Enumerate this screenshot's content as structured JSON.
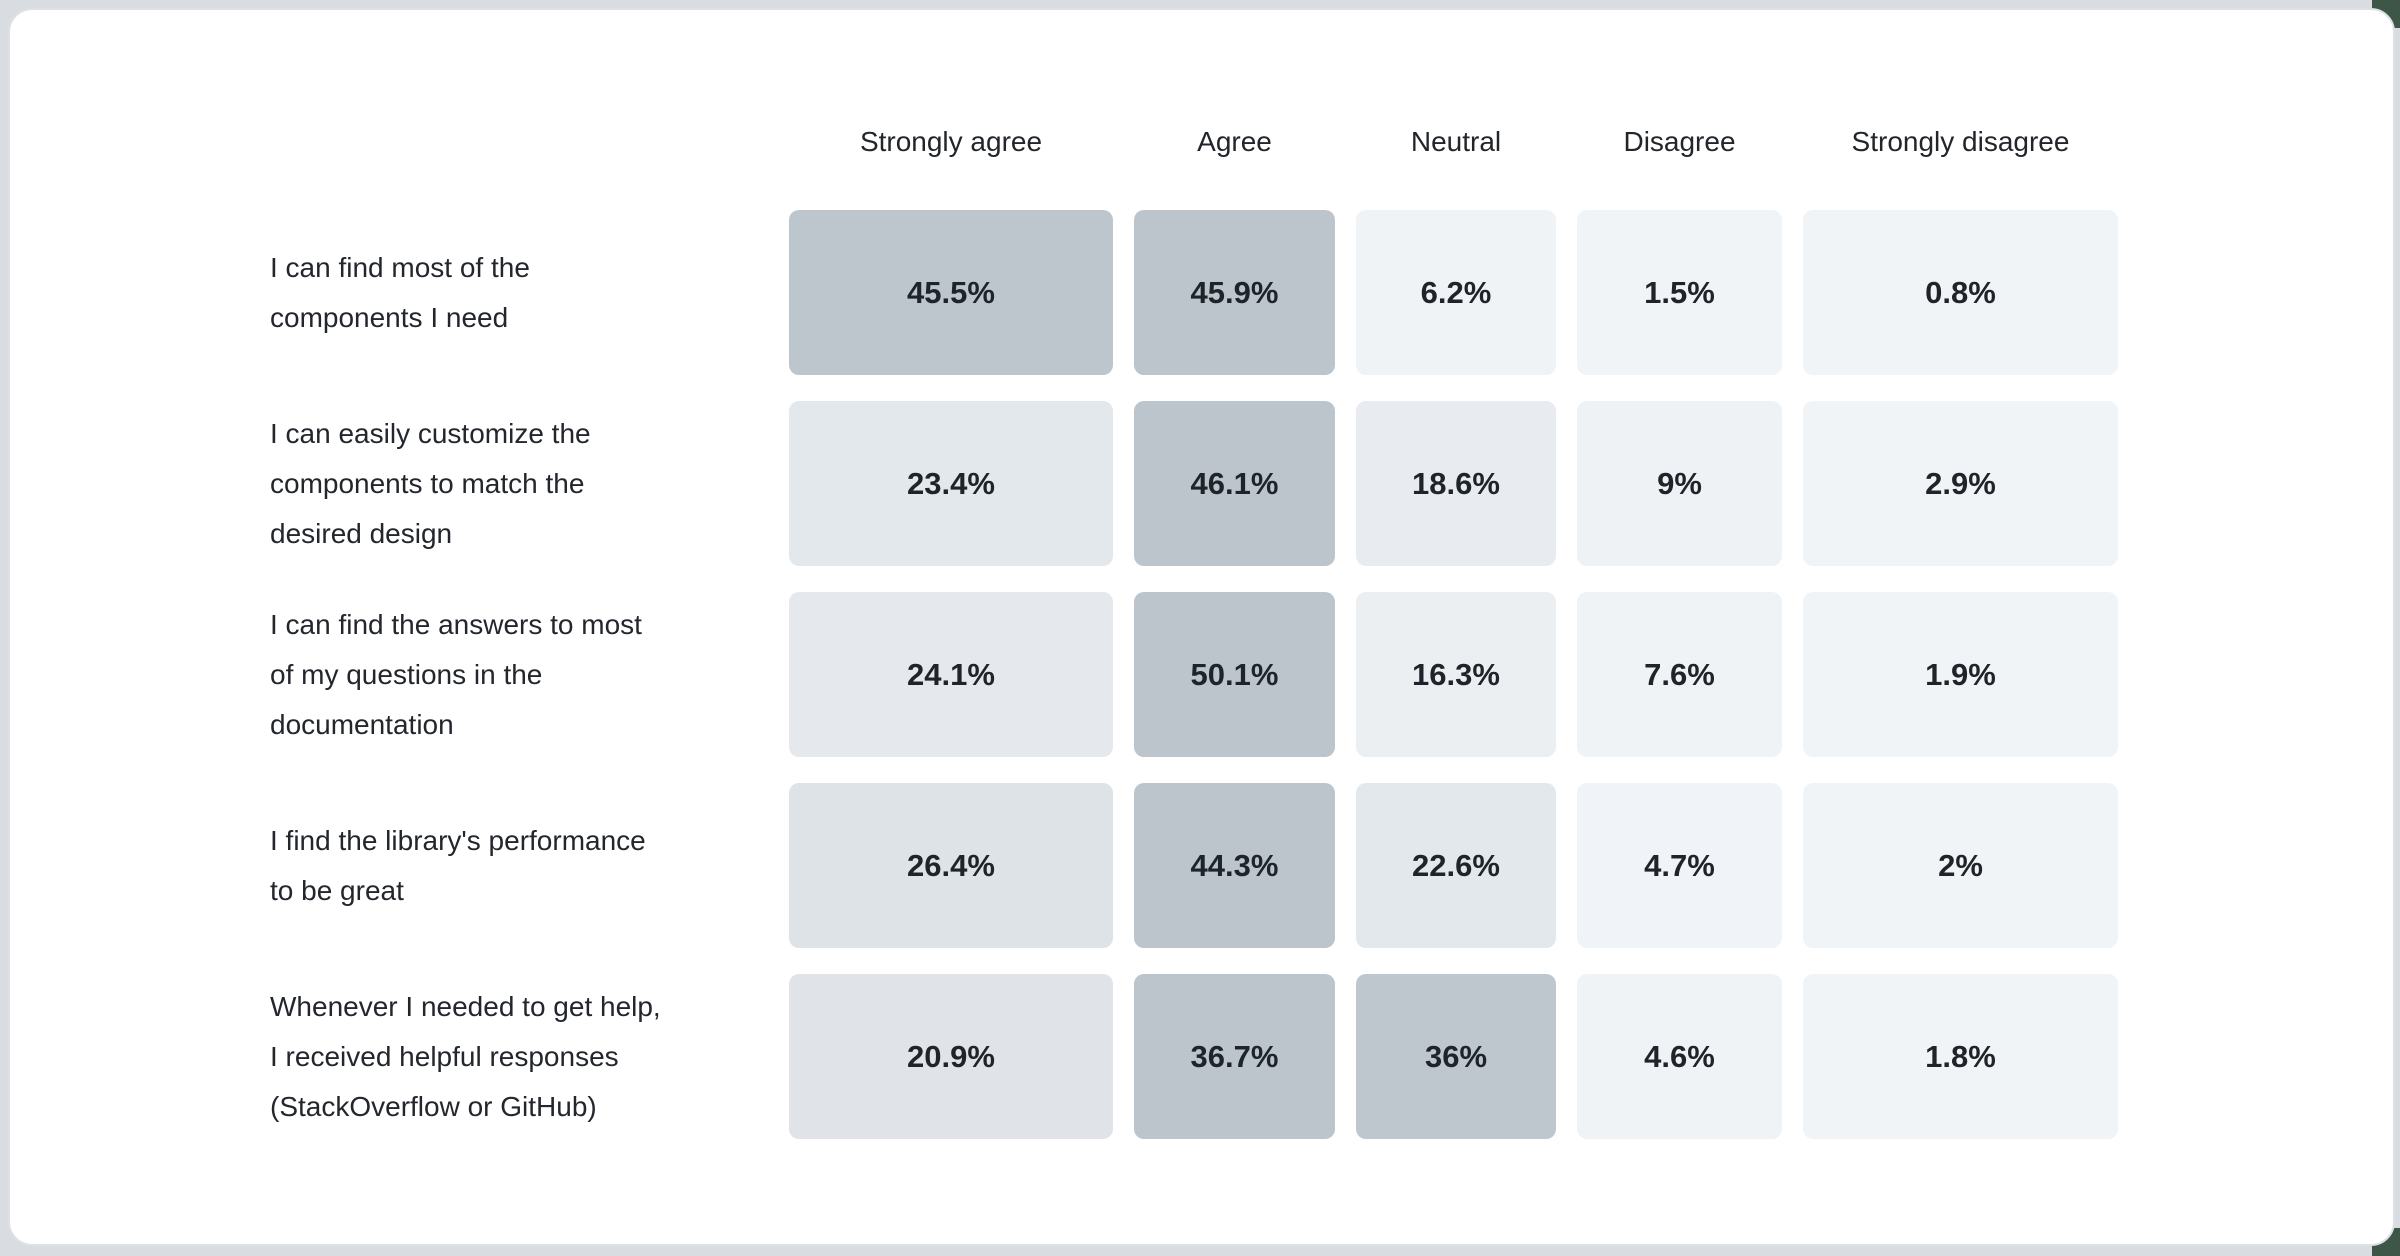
{
  "page": {
    "background": "#d9dce0",
    "corner_accent_color": "#3d5647",
    "card_background": "#ffffff",
    "card_border": "#dde1e5"
  },
  "chart_data": {
    "type": "heatmap",
    "title": "",
    "legend": "none",
    "grid": "off",
    "columns": [
      "Strongly agree",
      "Agree",
      "Neutral",
      "Disagree",
      "Strongly disagree"
    ],
    "rows": [
      {
        "question": "I can find most of the\ncomponents I need",
        "values": [
          45.5,
          45.9,
          6.2,
          1.5,
          0.8
        ],
        "labels": [
          "45.5%",
          "45.9%",
          "6.2%",
          "1.5%",
          "0.8%"
        ]
      },
      {
        "question": "I can easily customize the\ncomponents to match the\ndesired design",
        "values": [
          23.4,
          46.1,
          18.6,
          9,
          2.9
        ],
        "labels": [
          "23.4%",
          "46.1%",
          "18.6%",
          "9%",
          "2.9%"
        ]
      },
      {
        "question": "I can find the answers to most\nof my questions in the\ndocumentation",
        "values": [
          24.1,
          50.1,
          16.3,
          7.6,
          1.9
        ],
        "labels": [
          "24.1%",
          "50.1%",
          "16.3%",
          "7.6%",
          "1.9%"
        ]
      },
      {
        "question": "I find the library's performance\nto be great",
        "values": [
          26.4,
          44.3,
          22.6,
          4.7,
          2
        ],
        "labels": [
          "26.4%",
          "44.3%",
          "22.6%",
          "4.7%",
          "2%"
        ]
      },
      {
        "question": "Whenever I needed to get help,\nI received helpful responses\n(StackOverflow or GitHub)",
        "values": [
          20.9,
          36.7,
          36,
          4.6,
          1.8
        ],
        "labels": [
          "20.9%",
          "36.7%",
          "36%",
          "4.6%",
          "1.8%"
        ]
      }
    ],
    "color_scale": {
      "low": "#f1f4f7",
      "high": "#bcc4cc",
      "mapping": "per-row: t = (value / row_max)^2, lerp(low, high, t)"
    }
  }
}
